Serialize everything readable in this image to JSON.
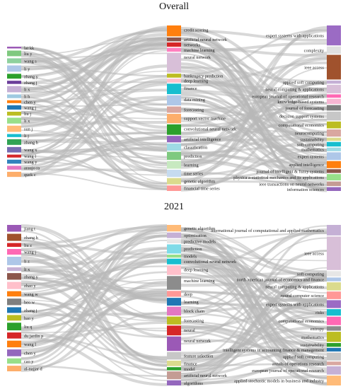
{
  "panels": [
    {
      "id": "overall",
      "title": "Overall",
      "authors": [
        {
          "name": "lai kk",
          "color": "#9b59b6"
        },
        {
          "name": "liu y",
          "color": "#7fc97f"
        },
        {
          "name": "wang s",
          "color": "#8fd19e"
        },
        {
          "name": "li y",
          "color": "#aec7e8"
        },
        {
          "name": "zhang y",
          "color": "#2ca02c"
        },
        {
          "name": "zhang j",
          "color": "#6a3d9a"
        },
        {
          "name": "li x",
          "color": "#c5b0d5"
        },
        {
          "name": "li h",
          "color": "#9ecae1"
        },
        {
          "name": "chen y",
          "color": "#ff7f0e"
        },
        {
          "name": "wang j",
          "color": "#1f77b4"
        },
        {
          "name": "liu j",
          "color": "#bcbd22"
        },
        {
          "name": "li x",
          "color": "#98df8a"
        },
        {
          "name": "sun j",
          "color": "#ffbb78"
        },
        {
          "name": "li j",
          "color": "#17becf"
        },
        {
          "name": "zhang h",
          "color": "#31a354"
        },
        {
          "name": "wang x",
          "color": "#756bb1"
        },
        {
          "name": "wang l",
          "color": "#d62728"
        },
        {
          "name": "wang y",
          "color": "#3182bd"
        },
        {
          "name": "araujo ra",
          "color": "#e377c2"
        },
        {
          "name": "quek c",
          "color": "#fdae6b"
        }
      ],
      "keywords": [
        {
          "name": "credit scoring",
          "color": "#ff7f0e"
        },
        {
          "name": "artificial neural network",
          "color": "#8c564b"
        },
        {
          "name": "networks",
          "color": "#d62728"
        },
        {
          "name": "machine learning",
          "color": "#ff7fbf"
        },
        {
          "name": "neural network",
          "color": "#d8bfd8"
        },
        {
          "name": "bankruptcy prediction",
          "color": "#bcbd22"
        },
        {
          "name": "deep learning",
          "color": "#ffc0cb"
        },
        {
          "name": "finance",
          "color": "#17becf"
        },
        {
          "name": "data mining",
          "color": "#aec7e8"
        },
        {
          "name": "forecasting",
          "color": "#d9a7a0"
        },
        {
          "name": "support vector machine",
          "color": "#fdae6b"
        },
        {
          "name": "convolutional neural network",
          "color": "#2ca02c"
        },
        {
          "name": "artificial intelligence",
          "color": "#9467bd"
        },
        {
          "name": "classification",
          "color": "#9edae5"
        },
        {
          "name": "prediction",
          "color": "#7fc97f"
        },
        {
          "name": "learning",
          "color": "#c7e9c0"
        },
        {
          "name": "time series",
          "color": "#c6dbef"
        },
        {
          "name": "genetic algorithm",
          "color": "#dbdb8d"
        },
        {
          "name": "financial time series",
          "color": "#ff9896"
        }
      ],
      "journals": [
        {
          "name": "expert systems with applications",
          "color": "#9b6bc4"
        },
        {
          "name": "complexity",
          "color": "#e0e0e0"
        },
        {
          "name": "ieee access",
          "color": "#a0522d"
        },
        {
          "name": "applied soft computing",
          "color": "#c5b0d5"
        },
        {
          "name": "neural computing & applications",
          "color": "#d8bfd8"
        },
        {
          "name": "european journal of operational research",
          "color": "#ff69b4"
        },
        {
          "name": "knowledge-based systems",
          "color": "#f7b6d2"
        },
        {
          "name": "journal of forecasting",
          "color": "#7f7f7f"
        },
        {
          "name": "decision support systems",
          "color": "#c7c7c7"
        },
        {
          "name": "computational economics",
          "color": "#bcbd22"
        },
        {
          "name": "neurocomputing",
          "color": "#d9a7a0"
        },
        {
          "name": "sustainability",
          "color": "#dbdb8d"
        },
        {
          "name": "soft computing",
          "color": "#17becf"
        },
        {
          "name": "mathematics",
          "color": "#9edae5"
        },
        {
          "name": "expert systems",
          "color": "#aec7e8"
        },
        {
          "name": "applied intelligence",
          "color": "#ff7f0e"
        },
        {
          "name": "journal of intelligent & fuzzy systems",
          "color": "#8c564b"
        },
        {
          "name": "physica a-statistical mechanics and its applications",
          "color": "#98df8a"
        },
        {
          "name": "ieee transactions on neural networks",
          "color": "#c49c94"
        },
        {
          "name": "information sciences",
          "color": "#9467bd"
        }
      ]
    },
    {
      "id": "y2021",
      "title": "2021",
      "authors": [
        {
          "name": "jiang t",
          "color": "#9b59b6"
        },
        {
          "name": "zhang h",
          "color": "#a0522d"
        },
        {
          "name": "liu z",
          "color": "#d62728"
        },
        {
          "name": "wang j",
          "color": "#ff69b4"
        },
        {
          "name": "li z",
          "color": "#aec7e8"
        },
        {
          "name": "li x",
          "color": "#c5b0d5"
        },
        {
          "name": "zhang y",
          "color": "#8c564b"
        },
        {
          "name": "zhao y",
          "color": "#ffc0cb"
        },
        {
          "name": "wang w",
          "color": "#ff7f0e"
        },
        {
          "name": "heo w",
          "color": "#7f7f7f"
        },
        {
          "name": "zhang j",
          "color": "#1f77b4"
        },
        {
          "name": "bao y",
          "color": "#bcbd22"
        },
        {
          "name": "liu q",
          "color": "#2ca02c"
        },
        {
          "name": "du jardin p",
          "color": "#d62728"
        },
        {
          "name": "wang l",
          "color": "#ff7f0e"
        },
        {
          "name": "chen y",
          "color": "#9467bd"
        },
        {
          "name": "cao y",
          "color": "#98df8a"
        },
        {
          "name": "al-najjar d",
          "color": "#fdae6b"
        }
      ],
      "keywords": [
        {
          "name": "genetic algorithm",
          "color": "#ffbb78"
        },
        {
          "name": "optimization",
          "color": "#c5b0d5"
        },
        {
          "name": "predictive models",
          "color": "#e6e6e6"
        },
        {
          "name": "prediction",
          "color": "#7fdbe8"
        },
        {
          "name": "models",
          "color": "#98df8a"
        },
        {
          "name": "convolutional neural network",
          "color": "#17becf"
        },
        {
          "name": "deep learning",
          "color": "#ffc0cb"
        },
        {
          "name": "machine learning",
          "color": "#8c8c8c"
        },
        {
          "name": "deep",
          "color": "#ff9896"
        },
        {
          "name": "learning",
          "color": "#1f77b4"
        },
        {
          "name": "block chain",
          "color": "#e377c2"
        },
        {
          "name": "forecasting",
          "color": "#bcbd22"
        },
        {
          "name": "neural",
          "color": "#d62728"
        },
        {
          "name": "neural network",
          "color": "#9b59b6"
        },
        {
          "name": "feature selection",
          "color": "#c7c7c7"
        },
        {
          "name": "finance",
          "color": "#dbdb8d"
        },
        {
          "name": "model",
          "color": "#2ca02c"
        },
        {
          "name": "artificial neural network",
          "color": "#c49c94"
        },
        {
          "name": "algorithms",
          "color": "#9467bd"
        }
      ],
      "journals": [
        {
          "name": "international journal of computational and applied mathematics",
          "color": "#c5b0d5"
        },
        {
          "name": "ieee access",
          "color": "#d8bfd8"
        },
        {
          "name": "soft computing",
          "color": "#e6e6e6"
        },
        {
          "name": "north american journal of economics and finance",
          "color": "#aec7e8"
        },
        {
          "name": "neural computing & applications",
          "color": "#dbdb8d"
        },
        {
          "name": "neural computer science",
          "color": "#ff9896"
        },
        {
          "name": "expert systems with applications",
          "color": "#9b6bc4"
        },
        {
          "name": "risks",
          "color": "#17becf"
        },
        {
          "name": "computational economics",
          "color": "#ff69b4"
        },
        {
          "name": "entropy",
          "color": "#8c8c8c"
        },
        {
          "name": "mathematics",
          "color": "#bcbd22"
        },
        {
          "name": "sustainability",
          "color": "#2ca02c"
        },
        {
          "name": "intelligent systems in accounting finance & management",
          "color": "#1f77b4"
        },
        {
          "name": "applied soft computing",
          "color": "#c7c7c7"
        },
        {
          "name": "annals of operations research",
          "color": "#d9a7a0"
        },
        {
          "name": "european journal of operational research",
          "color": "#c5b0d5"
        },
        {
          "name": "applied stochastic models in business and industry",
          "color": "#ffbb78"
        }
      ]
    }
  ]
}
